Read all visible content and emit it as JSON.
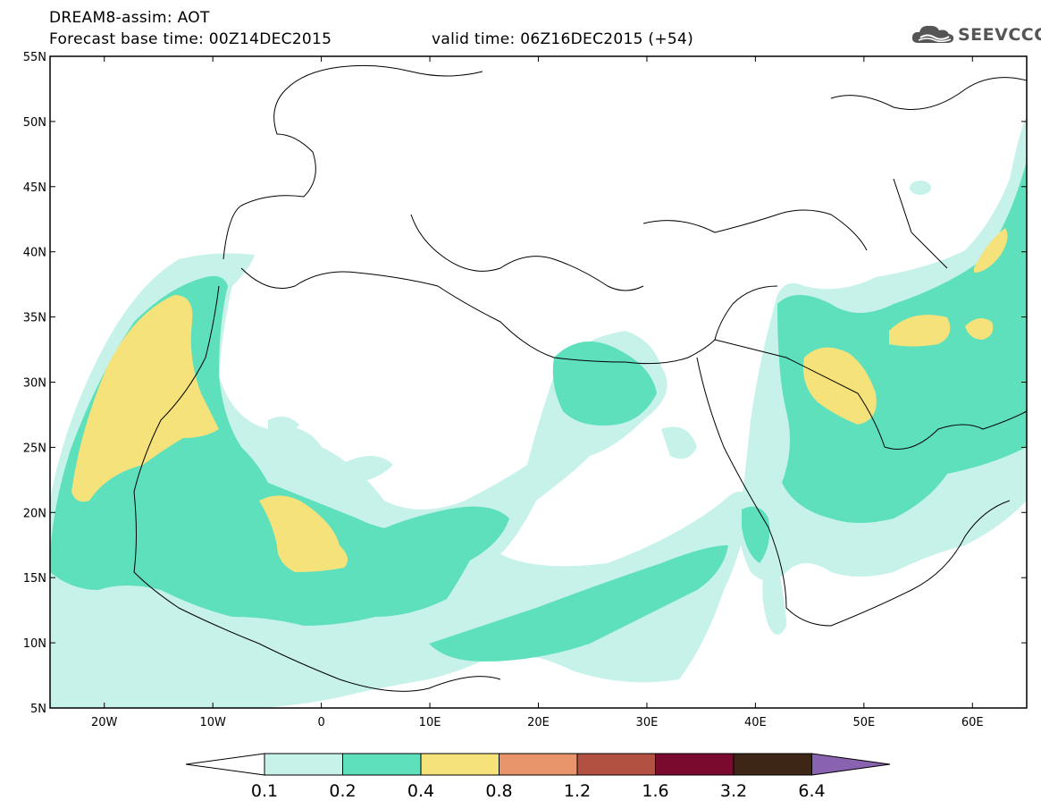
{
  "title": {
    "line1": "DREAM8-assim: AOT",
    "line2": "Forecast base time: 00Z14DEC2015",
    "valid": "valid time: 06Z16DEC2015 (+54)"
  },
  "logo": {
    "text": "SEEVCCC",
    "icon": "cloud-icon"
  },
  "map": {
    "lat_labels": [
      "55N",
      "50N",
      "45N",
      "40N",
      "35N",
      "30N",
      "25N",
      "20N",
      "15N",
      "10N",
      "5N"
    ],
    "lon_labels": [
      "20W",
      "10W",
      "0",
      "10E",
      "20E",
      "30E",
      "40E",
      "50E",
      "60E"
    ],
    "lon_range": [
      -25,
      65
    ],
    "lat_range": [
      5,
      55
    ]
  },
  "colorbar": {
    "labels": [
      "0.1",
      "0.2",
      "0.4",
      "0.8",
      "1.2",
      "1.6",
      "3.2",
      "6.4"
    ],
    "colors": [
      "#c6f2ea",
      "#5ee0bd",
      "#f5e27a",
      "#e8946a",
      "#b25041",
      "#7a0a2e",
      "#3e2616",
      "#8a63b0"
    ],
    "under_color": "#ffffff",
    "over_color": "#8a63b0"
  },
  "palette": {
    "level1": "#c6f2ea",
    "level2": "#5ee0bd",
    "level3": "#f5e27a"
  }
}
